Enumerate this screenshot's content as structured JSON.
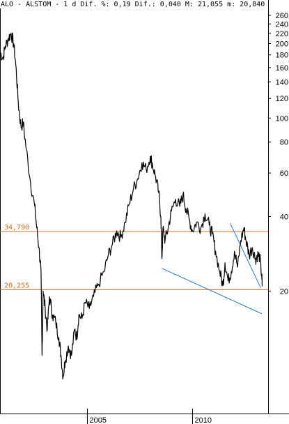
{
  "header": {
    "text": "ALO - ALSTOM -  1 d Dif. %: 0,19 Dif.: 0,040 M: 21,055 m: 20,840"
  },
  "chart_data": {
    "type": "line",
    "title": "ALO - ALSTOM -  1 d Dif. %: 0,19 Dif.: 0,040 M: 21,055 m: 20,840",
    "y_scale": "log",
    "y_ticks": [
      "260",
      "240",
      "220",
      "200",
      "180",
      "160",
      "140",
      "120",
      "100",
      "80",
      "60",
      "40",
      "20"
    ],
    "y_tick_values": [
      260,
      240,
      220,
      200,
      180,
      160,
      140,
      120,
      100,
      80,
      60,
      40,
      20
    ],
    "x_ticks": [
      {
        "label": "2005",
        "value": 2005.0
      },
      {
        "label": "2010",
        "value": 2010.0
      }
    ],
    "xlim": [
      2000.85,
      2013.6
    ],
    "ylim": [
      6.4,
      300
    ],
    "levels": [
      {
        "label": "34,790",
        "value": 34.79,
        "color": "#d9691e"
      },
      {
        "label": "20,255",
        "value": 20.255,
        "color": "#d9691e"
      }
    ],
    "trendlines": [
      {
        "color": "#1e7fd0",
        "points": [
          [
            2008.55,
            24.7
          ],
          [
            2013.3,
            16.2
          ]
        ]
      },
      {
        "color": "#1e7fd0",
        "points": [
          [
            2011.8,
            37.5
          ],
          [
            2013.25,
            20.6
          ]
        ]
      }
    ],
    "series": [
      {
        "color": "#000000",
        "points": [
          [
            2000.85,
            185
          ],
          [
            2001.0,
            175
          ],
          [
            2001.1,
            195
          ],
          [
            2001.25,
            210
          ],
          [
            2001.38,
            220
          ],
          [
            2001.5,
            200
          ],
          [
            2001.6,
            165
          ],
          [
            2001.72,
            115
          ],
          [
            2001.85,
            92
          ],
          [
            2001.95,
            96
          ],
          [
            2002.1,
            75
          ],
          [
            2002.3,
            55
          ],
          [
            2002.5,
            44
          ],
          [
            2002.6,
            36
          ],
          [
            2002.7,
            30
          ],
          [
            2002.8,
            24
          ],
          [
            2002.85,
            11
          ],
          [
            2002.9,
            20
          ],
          [
            2003.0,
            17
          ],
          [
            2003.1,
            14
          ],
          [
            2003.2,
            19
          ],
          [
            2003.35,
            16
          ],
          [
            2003.5,
            15
          ],
          [
            2003.65,
            13
          ],
          [
            2003.75,
            11
          ],
          [
            2003.85,
            9
          ],
          [
            2003.95,
            10.5
          ],
          [
            2004.1,
            12
          ],
          [
            2004.25,
            11
          ],
          [
            2004.4,
            14
          ],
          [
            2004.5,
            13
          ],
          [
            2004.6,
            16
          ],
          [
            2004.75,
            15.5
          ],
          [
            2004.9,
            18
          ],
          [
            2005.1,
            17
          ],
          [
            2005.3,
            19
          ],
          [
            2005.5,
            21
          ],
          [
            2005.8,
            24
          ],
          [
            2006.0,
            28
          ],
          [
            2006.2,
            31
          ],
          [
            2006.4,
            35
          ],
          [
            2006.6,
            33
          ],
          [
            2006.8,
            38
          ],
          [
            2007.0,
            45
          ],
          [
            2007.2,
            52
          ],
          [
            2007.4,
            57
          ],
          [
            2007.6,
            66
          ],
          [
            2007.8,
            62
          ],
          [
            2008.0,
            70
          ],
          [
            2008.1,
            65
          ],
          [
            2008.25,
            58
          ],
          [
            2008.4,
            50
          ],
          [
            2008.5,
            40
          ],
          [
            2008.55,
            27
          ],
          [
            2008.6,
            36
          ],
          [
            2008.7,
            32
          ],
          [
            2008.85,
            36
          ],
          [
            2009.0,
            42
          ],
          [
            2009.2,
            47
          ],
          [
            2009.4,
            44
          ],
          [
            2009.55,
            49
          ],
          [
            2009.7,
            43
          ],
          [
            2009.85,
            39
          ],
          [
            2010.0,
            35
          ],
          [
            2010.2,
            38
          ],
          [
            2010.4,
            36
          ],
          [
            2010.6,
            41
          ],
          [
            2010.8,
            37
          ],
          [
            2010.95,
            34
          ],
          [
            2011.1,
            29
          ],
          [
            2011.3,
            24
          ],
          [
            2011.45,
            21
          ],
          [
            2011.55,
            26
          ],
          [
            2011.7,
            22
          ],
          [
            2011.85,
            24
          ],
          [
            2012.0,
            29
          ],
          [
            2012.15,
            25
          ],
          [
            2012.3,
            32
          ],
          [
            2012.45,
            36
          ],
          [
            2012.55,
            32
          ],
          [
            2012.7,
            28
          ],
          [
            2012.85,
            30
          ],
          [
            2013.0,
            27
          ],
          [
            2013.1,
            28
          ],
          [
            2013.2,
            27.5
          ],
          [
            2013.3,
            23
          ],
          [
            2013.32,
            20.9
          ]
        ]
      }
    ]
  }
}
